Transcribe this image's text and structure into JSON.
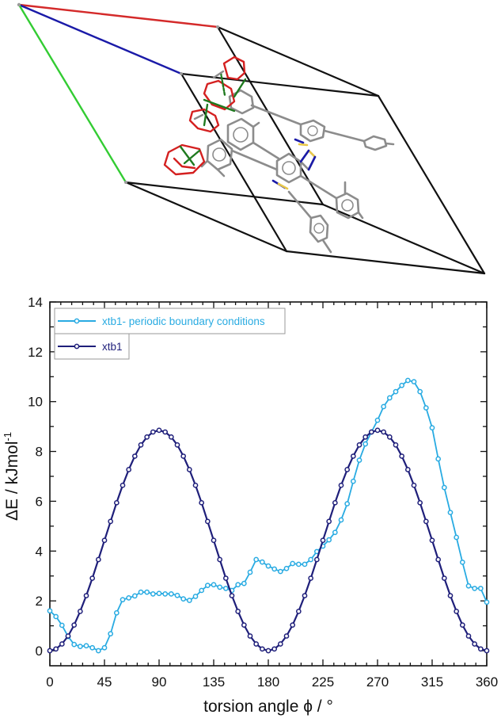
{
  "figure": {
    "top_panel": {
      "description": "crystal unit cell with molecule packing",
      "cell_axes": [
        {
          "name": "a",
          "color": "#d42a2a"
        },
        {
          "name": "b",
          "color": "#1a1aa8"
        },
        {
          "name": "c",
          "color": "#33cc33"
        }
      ],
      "cell_edge_color": "#111111",
      "atom_colors": {
        "carbon": "#8c8c8c",
        "oxygen": "#d42020",
        "nitrogen": "#1a1aa8",
        "sulfur": "#e8c84a",
        "hbond": "#1f7a1f"
      }
    }
  },
  "chart_data": {
    "type": "line",
    "title": "",
    "xlabel": "torsion angle ϕ / °",
    "ylabel": "ΔE / kJmol",
    "ylabel_superscript": "-1",
    "xlim": [
      0,
      360
    ],
    "ylim": [
      -0.6,
      14
    ],
    "xticks": [
      0,
      45,
      90,
      135,
      180,
      225,
      270,
      315,
      360
    ],
    "yticks": [
      0,
      2,
      4,
      6,
      8,
      10,
      12,
      14
    ],
    "grid": false,
    "legend_position": "upper-left",
    "x": [
      0,
      5,
      10,
      15,
      20,
      25,
      30,
      35,
      40,
      45,
      50,
      55,
      60,
      65,
      70,
      75,
      80,
      85,
      90,
      95,
      100,
      105,
      110,
      115,
      120,
      125,
      130,
      135,
      140,
      145,
      150,
      155,
      160,
      165,
      170,
      175,
      180,
      185,
      190,
      195,
      200,
      205,
      210,
      215,
      220,
      225,
      230,
      235,
      240,
      245,
      250,
      255,
      260,
      265,
      270,
      275,
      280,
      285,
      290,
      295,
      300,
      305,
      310,
      315,
      320,
      325,
      330,
      335,
      340,
      345,
      350,
      355,
      360
    ],
    "series": [
      {
        "name": "xtb1- periodic boundary conditions",
        "color": "#29abe2",
        "values": [
          1.6,
          1.37,
          1.02,
          0.57,
          0.25,
          0.17,
          0.2,
          0.12,
          0.0,
          0.12,
          0.68,
          1.52,
          2.05,
          2.12,
          2.2,
          2.35,
          2.35,
          2.28,
          2.3,
          2.28,
          2.28,
          2.22,
          2.08,
          2.02,
          2.18,
          2.42,
          2.62,
          2.65,
          2.55,
          2.5,
          2.42,
          2.65,
          2.7,
          3.15,
          3.66,
          3.56,
          3.4,
          3.28,
          3.18,
          3.3,
          3.5,
          3.47,
          3.47,
          3.66,
          3.98,
          4.2,
          4.45,
          4.75,
          5.25,
          5.9,
          6.8,
          7.65,
          8.3,
          8.78,
          9.25,
          9.8,
          10.15,
          10.4,
          10.65,
          10.85,
          10.8,
          10.4,
          9.75,
          8.95,
          7.7,
          6.55,
          5.55,
          4.55,
          3.55,
          2.6,
          2.5,
          2.5,
          1.95
        ]
      },
      {
        "name": "xtb1",
        "color": "#1f1f7a",
        "values": [
          0.0,
          0.07,
          0.27,
          0.59,
          1.03,
          1.58,
          2.21,
          2.91,
          3.66,
          4.43,
          5.19,
          5.94,
          6.64,
          7.27,
          7.81,
          8.26,
          8.58,
          8.78,
          8.85,
          8.78,
          8.58,
          8.26,
          7.81,
          7.27,
          6.64,
          5.94,
          5.19,
          4.43,
          3.66,
          2.91,
          2.21,
          1.58,
          1.03,
          0.59,
          0.27,
          0.07,
          0.0,
          0.07,
          0.27,
          0.59,
          1.03,
          1.58,
          2.21,
          2.91,
          3.66,
          4.43,
          5.19,
          5.94,
          6.64,
          7.27,
          7.81,
          8.26,
          8.58,
          8.78,
          8.85,
          8.78,
          8.58,
          8.26,
          7.81,
          7.27,
          6.64,
          5.94,
          5.19,
          4.43,
          3.66,
          2.91,
          2.21,
          1.58,
          1.03,
          0.59,
          0.27,
          0.07,
          0.0
        ]
      }
    ]
  }
}
